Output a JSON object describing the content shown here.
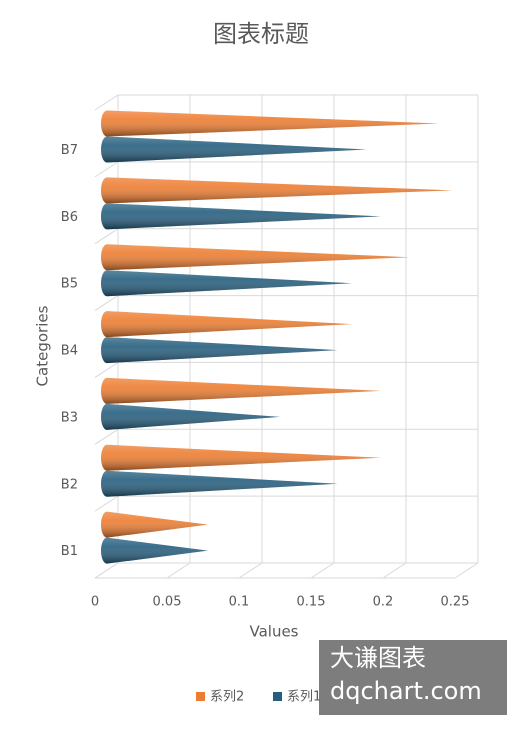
{
  "chart_data": {
    "type": "cone-bar",
    "title": "图表标题",
    "x_label": "Values",
    "y_label": "Categories",
    "categories": [
      "B1",
      "B2",
      "B3",
      "B4",
      "B5",
      "B6",
      "B7"
    ],
    "series": [
      {
        "name": "系列1",
        "color": "#255e7e",
        "values": [
          0.07,
          0.16,
          0.12,
          0.16,
          0.17,
          0.19,
          0.18
        ]
      },
      {
        "name": "系列2",
        "color": "#ed7d31",
        "values": [
          0.07,
          0.19,
          0.19,
          0.17,
          0.21,
          0.24,
          0.23
        ]
      }
    ],
    "xlim": [
      0,
      0.25
    ],
    "xticks": [
      0,
      0.05,
      0.1,
      0.15,
      0.2,
      0.25
    ],
    "grid": true,
    "legend": "bottom"
  },
  "watermark": [
    "大谦图表",
    "dqchart.com"
  ]
}
